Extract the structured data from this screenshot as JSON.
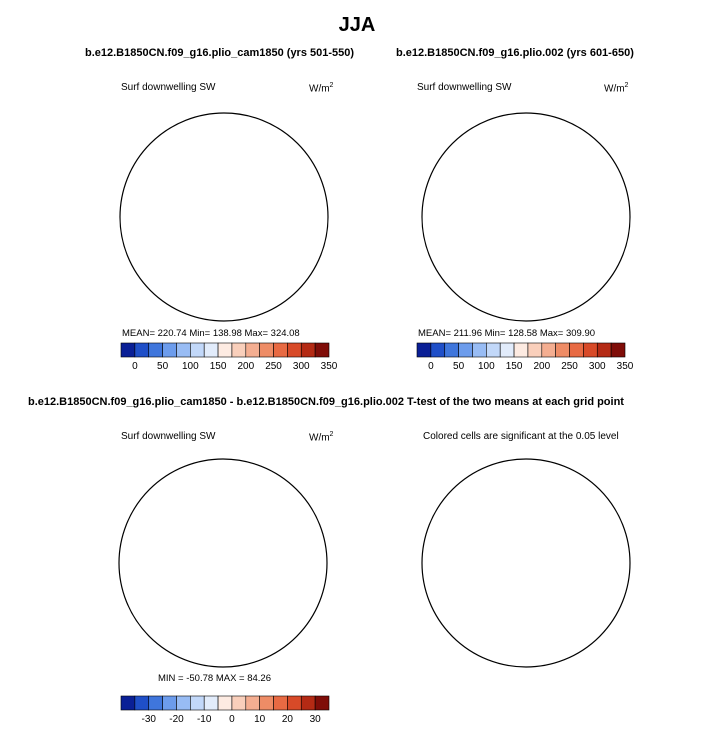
{
  "page_title": "JJA",
  "panels": [
    {
      "title": "b.e12.B1850CN.f09_g16.plio_cam1850 (yrs 501-550)",
      "left_label": "Surf downwelling SW",
      "units_base": "W/m",
      "units_exp": "2",
      "stats": "MEAN= 220.74   Min= 138.98   Max= 324.08"
    },
    {
      "title": "b.e12.B1850CN.f09_g16.plio.002 (yrs 601-650)",
      "left_label": "Surf downwelling SW",
      "units_base": "W/m",
      "units_exp": "2",
      "stats": "MEAN= 211.96   Min= 128.58   Max= 309.90"
    },
    {
      "title": "b.e12.B1850CN.f09_g16.plio_cam1850 - b.e12.B1850CN.f09_g16.plio.002",
      "left_label": "Surf downwelling SW",
      "units_base": "W/m",
      "units_exp": "2",
      "stats": "MIN = -50.78  MAX =   84.26"
    },
    {
      "title": "T-test of the two means at each grid point",
      "left_label": "Colored cells are significant at the 0.05 level"
    }
  ],
  "chart_data": [
    {
      "type": "heatmap",
      "title": "b.e12.B1850CN.f09_g16.plio_cam1850 (yrs 501-550)",
      "variable": "Surf downwelling SW",
      "units": "W/m2",
      "projection": "north polar stereographic",
      "mean": 220.74,
      "min": 138.98,
      "max": 324.08,
      "colorbar": {
        "levels": [
          0,
          25,
          50,
          75,
          100,
          125,
          150,
          175,
          200,
          225,
          250,
          275,
          300,
          325,
          350
        ],
        "tick_labels": [
          "0",
          "50",
          "100",
          "150",
          "200",
          "250",
          "300",
          "350"
        ],
        "colors": [
          "#0a1f96",
          "#1f4fc8",
          "#3f76dc",
          "#6c9cec",
          "#98bcf4",
          "#c2d8f9",
          "#e2ecfb",
          "#fdebe2",
          "#f9cfbb",
          "#f4ae91",
          "#ee8c66",
          "#e86a43",
          "#d84a28",
          "#b42a14",
          "#7f0d08"
        ]
      }
    },
    {
      "type": "heatmap",
      "title": "b.e12.B1850CN.f09_g16.plio.002 (yrs 601-650)",
      "variable": "Surf downwelling SW",
      "units": "W/m2",
      "projection": "north polar stereographic",
      "mean": 211.96,
      "min": 128.58,
      "max": 309.9,
      "colorbar": {
        "levels": [
          0,
          25,
          50,
          75,
          100,
          125,
          150,
          175,
          200,
          225,
          250,
          275,
          300,
          325,
          350
        ],
        "tick_labels": [
          "0",
          "50",
          "100",
          "150",
          "200",
          "250",
          "300",
          "350"
        ],
        "colors": [
          "#0a1f96",
          "#1f4fc8",
          "#3f76dc",
          "#6c9cec",
          "#98bcf4",
          "#c2d8f9",
          "#e2ecfb",
          "#fdebe2",
          "#f9cfbb",
          "#f4ae91",
          "#ee8c66",
          "#e86a43",
          "#d84a28",
          "#b42a14",
          "#7f0d08"
        ]
      }
    },
    {
      "type": "heatmap",
      "title": "b.e12.B1850CN.f09_g16.plio_cam1850 - b.e12.B1850CN.f09_g16.plio.002",
      "variable": "Surf downwelling SW",
      "units": "W/m2",
      "projection": "north polar stereographic",
      "min": -50.78,
      "max": 84.26,
      "colorbar": {
        "levels": [
          -35,
          -30,
          -25,
          -20,
          -15,
          -10,
          -5,
          0,
          5,
          10,
          15,
          20,
          25,
          30,
          35
        ],
        "tick_labels": [
          "-30",
          "-20",
          "-10",
          "0",
          "10",
          "20",
          "30"
        ],
        "colors": [
          "#0a1f96",
          "#1f4fc8",
          "#3f76dc",
          "#6c9cec",
          "#98bcf4",
          "#c2d8f9",
          "#e2ecfb",
          "#fdebe2",
          "#f9cfbb",
          "#f4ae91",
          "#ee8c66",
          "#e86a43",
          "#d84a28",
          "#b42a14",
          "#7f0d08"
        ]
      }
    },
    {
      "type": "heatmap",
      "title": "T-test of the two means at each grid point",
      "note": "Colored cells are significant at the 0.05 level",
      "significance_level": 0.05,
      "significant_color": "#f07c48",
      "not_significant_color": "#ffffff"
    }
  ]
}
